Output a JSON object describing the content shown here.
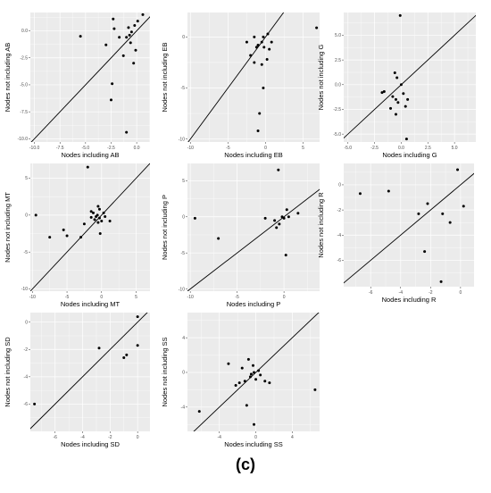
{
  "caption": "(c)",
  "colors": {
    "panel_bg": "#ebebeb",
    "grid": "#ffffff",
    "point": "#000000",
    "line": "#000000",
    "tick_text": "#4d4d4d"
  },
  "chart_data": [
    {
      "type": "scatter",
      "id": "AB",
      "xlabel": "Nodes including AB",
      "ylabel": "Nodes not including AB",
      "xlim": [
        -10.4,
        1.3
      ],
      "ylim": [
        -10.3,
        1.7
      ],
      "xticks": [
        -10,
        -7.5,
        -5,
        -2.5,
        0
      ],
      "xtick_labels": [
        "-10.0",
        "-7.5",
        "-5.0",
        "-2.5",
        "0.0"
      ],
      "yticks": [
        -10,
        -7.5,
        -5,
        -2.5,
        0
      ],
      "ytick_labels": [
        "-10.0",
        "-7.5",
        "-5.0",
        "-2.5",
        "0.0"
      ],
      "identity_line": true,
      "grid": true,
      "x": [
        -5.5,
        -2.3,
        -2.2,
        -1.7,
        -2.4,
        -2.5,
        -3.0,
        -1.3,
        -0.8,
        -1.0,
        -0.6,
        -0.7,
        -0.5,
        -0.2,
        0.1,
        0.6,
        -0.3,
        -0.1,
        -1.0
      ],
      "y": [
        -0.5,
        1.1,
        0.2,
        -0.6,
        -4.9,
        -6.4,
        -1.3,
        -2.3,
        0.3,
        -0.6,
        -1.1,
        -0.4,
        -0.1,
        0.5,
        0.9,
        1.5,
        -3.0,
        -1.8,
        -9.4
      ]
    },
    {
      "type": "scatter",
      "id": "EB",
      "xlabel": "Nodes including EB",
      "ylabel": "Nodes not including EB",
      "xlim": [
        -10.4,
        7.2
      ],
      "ylim": [
        -10.3,
        2.4
      ],
      "xticks": [
        -10,
        -5,
        0,
        5
      ],
      "xtick_labels": [
        "-10",
        "-5",
        "0",
        "5"
      ],
      "yticks": [
        -10,
        -5,
        0
      ],
      "ytick_labels": [
        "-10",
        "-5",
        "0"
      ],
      "identity_line": true,
      "grid": true,
      "x": [
        -2.5,
        -2.0,
        -1.5,
        -1.2,
        -1.5,
        -1.0,
        -0.5,
        -0.2,
        0.3,
        -0.5,
        0.2,
        0.8,
        0.5,
        -0.3,
        -0.8,
        -0.3,
        -1.0,
        6.8
      ],
      "y": [
        -0.5,
        -1.8,
        0.0,
        -1.0,
        -2.5,
        -0.8,
        -0.5,
        -1.0,
        0.3,
        -2.7,
        -2.2,
        -0.5,
        -1.2,
        -5.0,
        -7.5,
        0.0,
        -9.2,
        0.9
      ]
    },
    {
      "type": "scatter",
      "id": "G",
      "xlabel": "Nodes including G",
      "ylabel": "Nodes not including G",
      "xlim": [
        -5.4,
        7.0
      ],
      "ylim": [
        -5.8,
        7.3
      ],
      "xticks": [
        -5,
        -2.5,
        0,
        2.5,
        5
      ],
      "xtick_labels": [
        "-5.0",
        "-2.5",
        "0.0",
        "2.5",
        "5.0"
      ],
      "yticks": [
        -5,
        -2.5,
        0,
        2.5,
        5
      ],
      "ytick_labels": [
        "-5.0",
        "-2.5",
        "0.0",
        "2.5",
        "5.0"
      ],
      "identity_line": true,
      "grid": true,
      "x": [
        -1.8,
        -1.6,
        -1.0,
        -0.8,
        -0.6,
        -0.4,
        -0.3,
        -0.5,
        0.0,
        0.2,
        0.4,
        -0.5,
        0.6,
        0.5,
        -0.1
      ],
      "y": [
        -0.8,
        -0.7,
        -2.4,
        -1.2,
        1.2,
        0.7,
        -1.8,
        -1.5,
        0.0,
        -0.9,
        -2.2,
        -3.0,
        -1.5,
        -5.5,
        7.0
      ]
    },
    {
      "type": "scatter",
      "id": "MT",
      "xlabel": "Nodes including MT",
      "ylabel": "Nodes not including MT",
      "xlim": [
        -10.3,
        7.0
      ],
      "ylim": [
        -10.3,
        7.0
      ],
      "xticks": [
        -10,
        -5,
        0,
        5
      ],
      "xtick_labels": [
        "-10",
        "-5",
        "0",
        "5"
      ],
      "yticks": [
        -10,
        -5,
        0,
        5
      ],
      "ytick_labels": [
        "-10",
        "-5",
        "0",
        "5"
      ],
      "identity_line": true,
      "grid": true,
      "x": [
        -9.5,
        -7.5,
        -5.5,
        -5.0,
        -3.0,
        -2.5,
        -1.5,
        -1.5,
        -1.2,
        -1.0,
        -0.8,
        -0.6,
        -0.5,
        -0.3,
        -0.3,
        -0.2,
        0.0,
        0.3,
        0.5,
        1.2,
        -0.5,
        -2.0
      ],
      "y": [
        0.0,
        -3.0,
        -2.0,
        -2.8,
        -3.0,
        -1.2,
        0.5,
        -0.3,
        0.3,
        -0.6,
        -0.2,
        0.0,
        1.2,
        -0.4,
        0.8,
        -2.5,
        -0.8,
        0.3,
        -0.2,
        -0.8,
        -1.0,
        6.5
      ]
    },
    {
      "type": "scatter",
      "id": "P",
      "xlabel": "Nodes including P",
      "ylabel": "Nodes not including P",
      "xlim": [
        -10.3,
        3.8
      ],
      "ylim": [
        -10.3,
        7.4
      ],
      "xticks": [
        -10,
        -5,
        0
      ],
      "xtick_labels": [
        "-10",
        "-5",
        "0"
      ],
      "yticks": [
        -10,
        -5,
        0,
        5
      ],
      "ytick_labels": [
        "-10",
        "-5",
        "0",
        "5"
      ],
      "identity_line": true,
      "grid": true,
      "x": [
        -9.5,
        -7.0,
        -2.0,
        -1.0,
        -0.8,
        -0.5,
        -0.2,
        0.0,
        0.3,
        0.5,
        1.5,
        -0.6,
        0.2
      ],
      "y": [
        -0.2,
        -3.0,
        -0.2,
        -0.5,
        -1.5,
        -1.0,
        0.0,
        -0.2,
        1.0,
        0.0,
        0.5,
        6.5,
        -5.3
      ]
    },
    {
      "type": "scatter",
      "id": "R",
      "xlabel": "Nodes including R",
      "ylabel": "Nodes not including R",
      "xlim": [
        -7.8,
        0.9
      ],
      "ylim": [
        -8.1,
        1.7
      ],
      "xticks": [
        -6,
        -4,
        -2,
        0
      ],
      "xtick_labels": [
        "-6",
        "-4",
        "-2",
        "0"
      ],
      "yticks": [
        -6,
        -4,
        -2,
        0
      ],
      "ytick_labels": [
        "-6",
        "-4",
        "-2",
        "0"
      ],
      "identity_line": true,
      "grid": true,
      "x": [
        -6.7,
        -4.8,
        -2.8,
        -2.4,
        -2.2,
        -1.2,
        -0.7,
        -0.2,
        0.2,
        -1.3
      ],
      "y": [
        -0.7,
        -0.5,
        -2.3,
        -5.3,
        -1.5,
        -2.3,
        -3.0,
        1.2,
        -1.7,
        -7.7
      ]
    },
    {
      "type": "scatter",
      "id": "SD",
      "xlabel": "Nodes including SD",
      "ylabel": "Nodes not including SD",
      "xlim": [
        -7.8,
        0.9
      ],
      "ylim": [
        -8.0,
        0.7
      ],
      "xticks": [
        -6,
        -4,
        -2,
        0
      ],
      "xtick_labels": [
        "-6",
        "-4",
        "-2",
        "0"
      ],
      "yticks": [
        -6,
        -4,
        -2,
        0
      ],
      "ytick_labels": [
        "-6",
        "-4",
        "-2",
        "0"
      ],
      "identity_line": true,
      "grid": true,
      "x": [
        -7.5,
        -2.8,
        -1.0,
        -0.8,
        0.0,
        0.0
      ],
      "y": [
        -6.0,
        -1.9,
        -2.6,
        -2.4,
        0.4,
        -1.7
      ]
    },
    {
      "type": "scatter",
      "id": "SS",
      "xlabel": "Nodes including SS",
      "ylabel": "Nodes not including SS",
      "xlim": [
        -7.5,
        7.0
      ],
      "ylim": [
        -6.8,
        6.9
      ],
      "xticks": [
        -4,
        0,
        4
      ],
      "xtick_labels": [
        "-4",
        "0",
        "4"
      ],
      "yticks": [
        -4,
        0,
        4
      ],
      "ytick_labels": [
        "-4",
        "0",
        "4"
      ],
      "identity_line": true,
      "grid": true,
      "x": [
        -6.2,
        -3.0,
        -2.2,
        -1.8,
        -1.5,
        -1.2,
        -0.8,
        -0.6,
        -0.5,
        -0.3,
        -0.2,
        0.0,
        0.3,
        0.5,
        1.0,
        1.5,
        6.5,
        -1.0,
        -0.2
      ],
      "y": [
        -4.5,
        1.0,
        -1.5,
        -1.2,
        0.5,
        -1.0,
        1.5,
        -0.5,
        -0.2,
        0.8,
        0.0,
        -0.8,
        0.2,
        -0.3,
        -1.0,
        -1.2,
        -2.0,
        -3.8,
        -6.0
      ]
    }
  ]
}
